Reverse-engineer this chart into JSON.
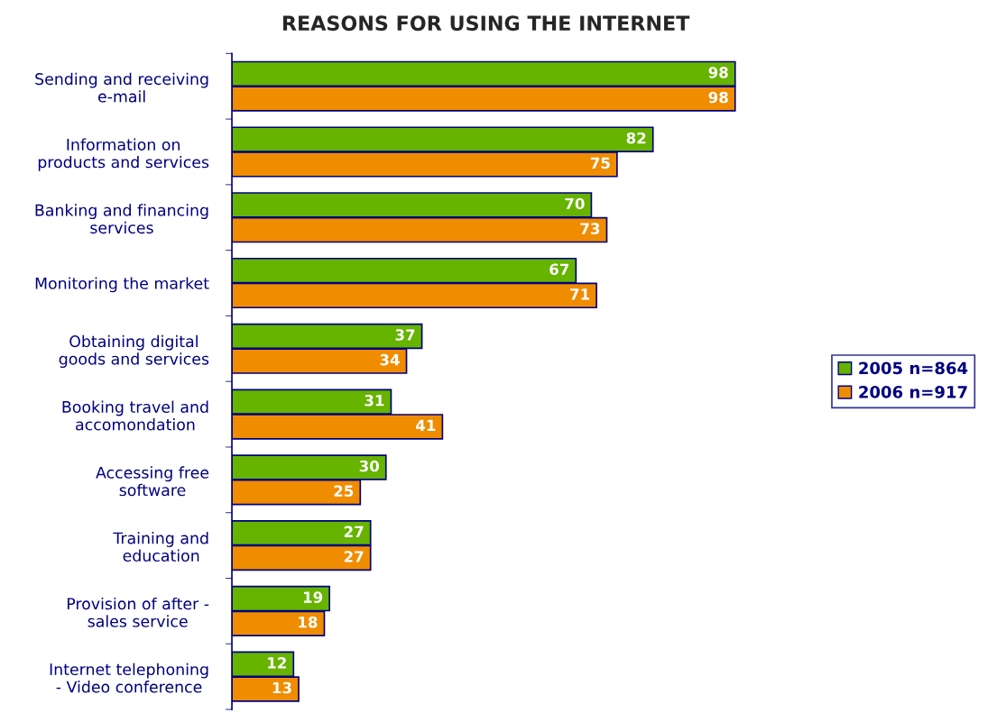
{
  "chart_data": {
    "type": "bar",
    "orientation": "horizontal",
    "title": "REASONS FOR USING THE INTERNET",
    "categories": [
      "Sending and receiving\ne-mail",
      "Information on\nproducts and services",
      "Banking and financing\nservices",
      "Monitoring the market",
      "Obtaining digital\ngoods and services",
      "Booking travel and\naccomondation",
      "Accessing free\nsoftware",
      "Training and\neducation",
      "Provision of after -\nsales service",
      "Internet telephoning\n- Video conference"
    ],
    "series": [
      {
        "name": "2005 n=864",
        "color": "#66b300",
        "values": [
          98,
          82,
          70,
          67,
          37,
          31,
          30,
          27,
          19,
          12
        ]
      },
      {
        "name": "2006 n=917",
        "color": "#f08c00",
        "values": [
          98,
          75,
          73,
          71,
          34,
          41,
          25,
          27,
          18,
          13
        ]
      }
    ],
    "data_labels": true,
    "legend": "right",
    "grid": false
  }
}
